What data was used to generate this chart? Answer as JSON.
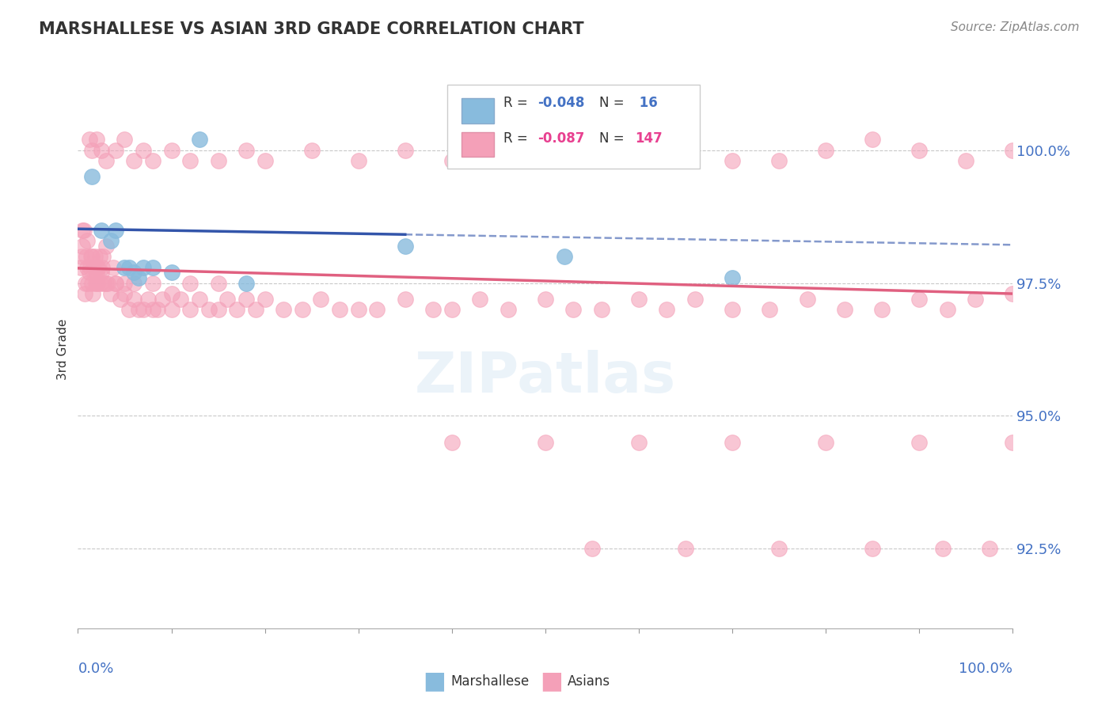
{
  "title": "MARSHALLESE VS ASIAN 3RD GRADE CORRELATION CHART",
  "source": "Source: ZipAtlas.com",
  "ylabel": "3rd Grade",
  "ytick_values": [
    92.5,
    95.0,
    97.5,
    100.0
  ],
  "xmin": 0.0,
  "xmax": 100.0,
  "ymin": 91.0,
  "ymax": 101.5,
  "blue_color": "#88bbdd",
  "pink_color": "#f4a0b8",
  "trend_blue": "#3355aa",
  "trend_pink": "#e06080",
  "label_color": "#4472c4",
  "marshallese_x": [
    1.5,
    3.5,
    4.0,
    5.0,
    5.5,
    6.0,
    6.5,
    7.0,
    8.0,
    10.0,
    13.0,
    18.0,
    35.0,
    52.0,
    70.0,
    2.5
  ],
  "marshallese_y": [
    99.5,
    98.3,
    98.5,
    97.8,
    97.8,
    97.7,
    97.6,
    97.8,
    97.8,
    97.7,
    100.2,
    97.5,
    98.2,
    98.0,
    97.6,
    98.5
  ],
  "asian_x": [
    0.3,
    0.4,
    0.5,
    0.6,
    0.7,
    0.8,
    0.9,
    1.0,
    1.1,
    1.2,
    1.3,
    1.4,
    1.5,
    1.6,
    1.7,
    1.8,
    1.9,
    2.0,
    2.1,
    2.2,
    2.3,
    2.4,
    2.5,
    2.6,
    2.7,
    2.8,
    3.0,
    3.2,
    3.5,
    3.8,
    4.0,
    4.5,
    5.0,
    5.5,
    6.0,
    6.5,
    7.0,
    7.5,
    8.0,
    8.5,
    9.0,
    10.0,
    11.0,
    12.0,
    13.0,
    14.0,
    15.0,
    16.0,
    17.0,
    18.0,
    19.0,
    20.0,
    22.0,
    24.0,
    26.0,
    28.0,
    30.0,
    32.0,
    35.0,
    38.0,
    40.0,
    43.0,
    46.0,
    50.0,
    53.0,
    56.0,
    60.0,
    63.0,
    66.0,
    70.0,
    74.0,
    78.0,
    82.0,
    86.0,
    90.0,
    93.0,
    96.0,
    100.0,
    0.5,
    1.0,
    1.5,
    2.0,
    3.0,
    4.0,
    5.0,
    6.0,
    8.0,
    10.0,
    12.0,
    15.0,
    1.2,
    1.5,
    2.0,
    2.5,
    3.0,
    4.0,
    5.0,
    6.0,
    7.0,
    8.0,
    10.0,
    12.0,
    15.0,
    18.0,
    20.0,
    25.0,
    30.0,
    35.0,
    40.0,
    45.0,
    50.0,
    55.0,
    60.0,
    65.0,
    70.0,
    75.0,
    80.0,
    85.0,
    90.0,
    95.0,
    100.0,
    40.0,
    50.0,
    60.0,
    70.0,
    80.0,
    90.0,
    100.0,
    55.0,
    65.0,
    75.0,
    85.0,
    92.5,
    97.5
  ],
  "asian_y": [
    97.8,
    98.0,
    98.2,
    98.5,
    97.3,
    97.5,
    98.0,
    97.8,
    97.5,
    97.7,
    97.8,
    98.0,
    97.5,
    97.3,
    97.8,
    98.0,
    97.5,
    97.7,
    97.5,
    97.8,
    98.0,
    97.5,
    97.7,
    97.8,
    98.0,
    97.5,
    98.2,
    97.5,
    97.3,
    97.8,
    97.5,
    97.2,
    97.5,
    97.0,
    97.2,
    97.0,
    97.0,
    97.2,
    97.0,
    97.0,
    97.2,
    97.0,
    97.2,
    97.0,
    97.2,
    97.0,
    97.0,
    97.2,
    97.0,
    97.2,
    97.0,
    97.2,
    97.0,
    97.0,
    97.2,
    97.0,
    97.0,
    97.0,
    97.2,
    97.0,
    97.0,
    97.2,
    97.0,
    97.2,
    97.0,
    97.0,
    97.2,
    97.0,
    97.2,
    97.0,
    97.0,
    97.2,
    97.0,
    97.0,
    97.2,
    97.0,
    97.2,
    97.3,
    98.5,
    98.3,
    98.0,
    97.8,
    97.5,
    97.5,
    97.3,
    97.5,
    97.5,
    97.3,
    97.5,
    97.5,
    100.2,
    100.0,
    100.2,
    100.0,
    99.8,
    100.0,
    100.2,
    99.8,
    100.0,
    99.8,
    100.0,
    99.8,
    99.8,
    100.0,
    99.8,
    100.0,
    99.8,
    100.0,
    99.8,
    100.0,
    100.2,
    100.0,
    99.8,
    100.0,
    99.8,
    99.8,
    100.0,
    100.2,
    100.0,
    99.8,
    100.0,
    94.5,
    94.5,
    94.5,
    94.5,
    94.5,
    94.5,
    94.5,
    92.5,
    92.5,
    92.5,
    92.5,
    92.5,
    92.5
  ]
}
